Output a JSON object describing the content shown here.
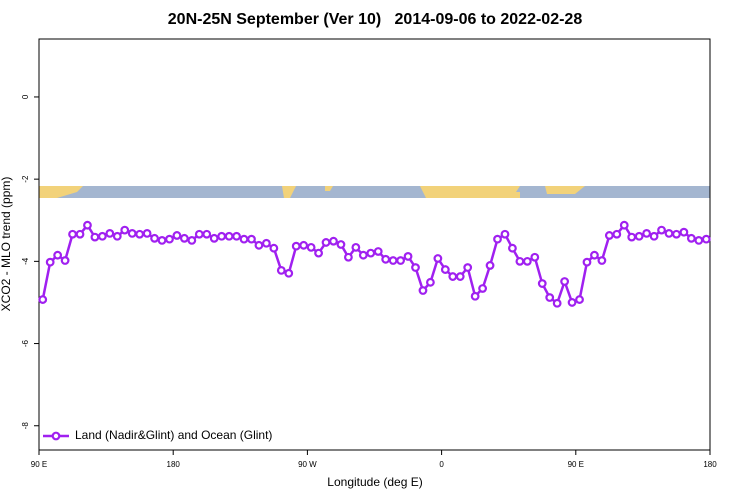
{
  "chart_data": {
    "type": "line",
    "title": "20N-25N September (Ver 10)   2014-09-06 to 2022-02-28",
    "xlabel": "Longitude (deg E)",
    "ylabel": "XCO2 - MLO trend (ppm)",
    "x": [
      92.5,
      97.5,
      102.5,
      107.5,
      112.5,
      117.5,
      122.5,
      127.5,
      132.5,
      137.5,
      142.5,
      147.5,
      152.5,
      157.5,
      162.5,
      167.5,
      172.5,
      177.5,
      182.5,
      187.5,
      192.5,
      197.5,
      202.5,
      207.5,
      212.5,
      217.5,
      222.5,
      227.5,
      232.5,
      237.5,
      242.5,
      247.5,
      252.5,
      257.5,
      262.5,
      267.5,
      272.5,
      277.5,
      282.5,
      287.5,
      292.5,
      297.5,
      302.5,
      307.5,
      312.5,
      317.5,
      322.5,
      327.5,
      332.5,
      337.5,
      342.5,
      347.5,
      352.5,
      357.5,
      362.5,
      367.5,
      372.5,
      377.5,
      382.5,
      387.5,
      392.5,
      397.5,
      402.5,
      407.5,
      412.5,
      417.5,
      422.5,
      427.5,
      432.5,
      437.5,
      442.5,
      447.5,
      452.5,
      457.5,
      462.5,
      467.5,
      472.5,
      477.5,
      482.5,
      487.5,
      492.5,
      497.5,
      502.5,
      507.5,
      512.5,
      517.5,
      522.5,
      527.5,
      532.5,
      537.5
    ],
    "series": [
      {
        "name": "Land (Nadir&Glint) and Ocean (Glint)",
        "color": "#a020f0",
        "values": [
          -4.93,
          -4.02,
          -3.85,
          -3.98,
          -3.34,
          -3.34,
          -3.12,
          -3.41,
          -3.39,
          -3.32,
          -3.39,
          -3.24,
          -3.32,
          -3.34,
          -3.32,
          -3.44,
          -3.49,
          -3.46,
          -3.37,
          -3.44,
          -3.49,
          -3.34,
          -3.34,
          -3.44,
          -3.39,
          -3.39,
          -3.39,
          -3.46,
          -3.46,
          -3.61,
          -3.56,
          -3.68,
          -4.22,
          -4.29,
          -3.63,
          -3.61,
          -3.66,
          -3.8,
          -3.54,
          -3.51,
          -3.59,
          -3.9,
          -3.66,
          -3.85,
          -3.8,
          -3.76,
          -3.95,
          -3.98,
          -3.98,
          -3.88,
          -4.15,
          -4.71,
          -4.51,
          -3.93,
          -4.2,
          -4.37,
          -4.37,
          -4.15,
          -4.85,
          -4.66,
          -4.1,
          -3.46,
          -3.34,
          -3.68,
          -4.0,
          -4.0,
          -3.9,
          -4.54,
          -4.88,
          -5.02,
          -4.49,
          -5.0,
          -4.93,
          -4.02,
          -3.85,
          -3.98,
          -3.37,
          -3.34,
          -3.12,
          -3.41,
          -3.39,
          -3.32,
          -3.39,
          -3.24,
          -3.32,
          -3.34,
          -3.29,
          -3.44,
          -3.49,
          -3.46
        ]
      }
    ],
    "xlim": [
      90,
      540
    ],
    "xticks": [
      {
        "value": 90,
        "label": "90 E"
      },
      180,
      {
        "value": 270,
        "label": "90 W"
      },
      {
        "value": 360,
        "label": "0"
      },
      {
        "value": 450,
        "label": "90 E"
      },
      {
        "value": 540,
        "label": "180"
      }
    ],
    "ylim": [
      1.41,
      -8.59
    ],
    "yticks": [
      0,
      -2,
      -4,
      -6,
      -8
    ],
    "legend": "bottom-left"
  }
}
